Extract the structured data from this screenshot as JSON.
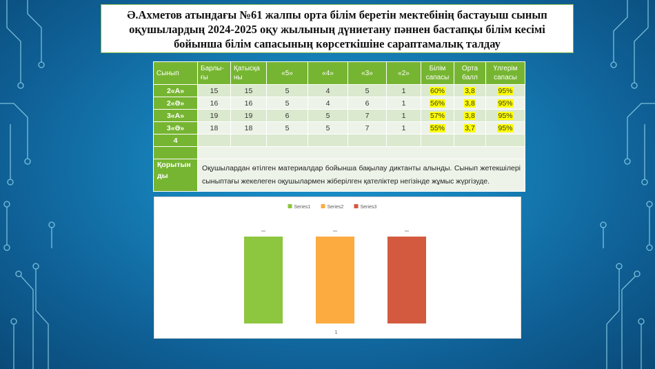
{
  "title": {
    "line1": "Ә.Ахметов атындағы №61 жалпы орта білім беретін мектебінің бастауыш сынып",
    "line2": "оқушылардың   2024-2025 оқу жылының дүниетану  пәннен бастапқы білім кесімі",
    "line3": "бойынша білім сапасының көрсеткішіне сараптамалық талдау"
  },
  "table": {
    "headers": {
      "c1": "Сынып",
      "c2a": "Барлы-",
      "c2b": "ғы",
      "c3a": "Қатысқа",
      "c3b": "ны",
      "c4": "«5»",
      "c5": "«4»",
      "c6": "«3»",
      "c7": "«2»",
      "c8a": "Білім",
      "c8b": "сапасы",
      "c9a": "Орта",
      "c9b": "балл",
      "c10a": "Үлгерім",
      "c10b": "сапасы"
    },
    "rows": [
      {
        "cls": "2«А»",
        "total": "15",
        "present": "15",
        "g5": "5",
        "g4": "4",
        "g3": "5",
        "g2": "1",
        "quality": "60%",
        "avg": "3,8",
        "perf": "95%"
      },
      {
        "cls": "2«Ә»",
        "total": "16",
        "present": "16",
        "g5": "5",
        "g4": "4",
        "g3": "6",
        "g2": "1",
        "quality": "56%",
        "avg": "3,8",
        "perf": "95%"
      },
      {
        "cls": "3«А»",
        "total": "19",
        "present": "19",
        "g5": "6",
        "g4": "5",
        "g3": "7",
        "g2": "1",
        "quality": "57%",
        "avg": "3,8",
        "perf": "95%"
      },
      {
        "cls": "3«Ә»",
        "total": "18",
        "present": "18",
        "g5": "5",
        "g4": "5",
        "g3": "7",
        "g2": "1",
        "quality": "55%",
        "avg": "3,7",
        "perf": "95%"
      },
      {
        "cls": "4",
        "total": "",
        "present": "",
        "g5": "",
        "g4": "",
        "g3": "",
        "g2": "",
        "quality": "",
        "avg": "",
        "perf": ""
      }
    ],
    "conclusion_label_a": "Қорытын",
    "conclusion_label_b": "ды",
    "conclusion_text": "Оқушылардан өтілген материалдар бойынша бақылау диктанты  алынды. Сынып жетекшілері сыныптағы жекелеген оқушылармен жіберілген қателіктер негізінде жұмыс жүргізуде."
  },
  "chart_data": {
    "type": "bar",
    "categories": [
      "1"
    ],
    "series": [
      {
        "name": "Series1",
        "values": [
          1
        ],
        "color": "#8dc63f"
      },
      {
        "name": "Series2",
        "values": [
          1
        ],
        "color": "#fbab3f"
      },
      {
        "name": "Series3",
        "values": [
          1
        ],
        "color": "#d35a3f"
      }
    ],
    "ylim": [
      0,
      1
    ],
    "legend": "top",
    "grid": false
  }
}
